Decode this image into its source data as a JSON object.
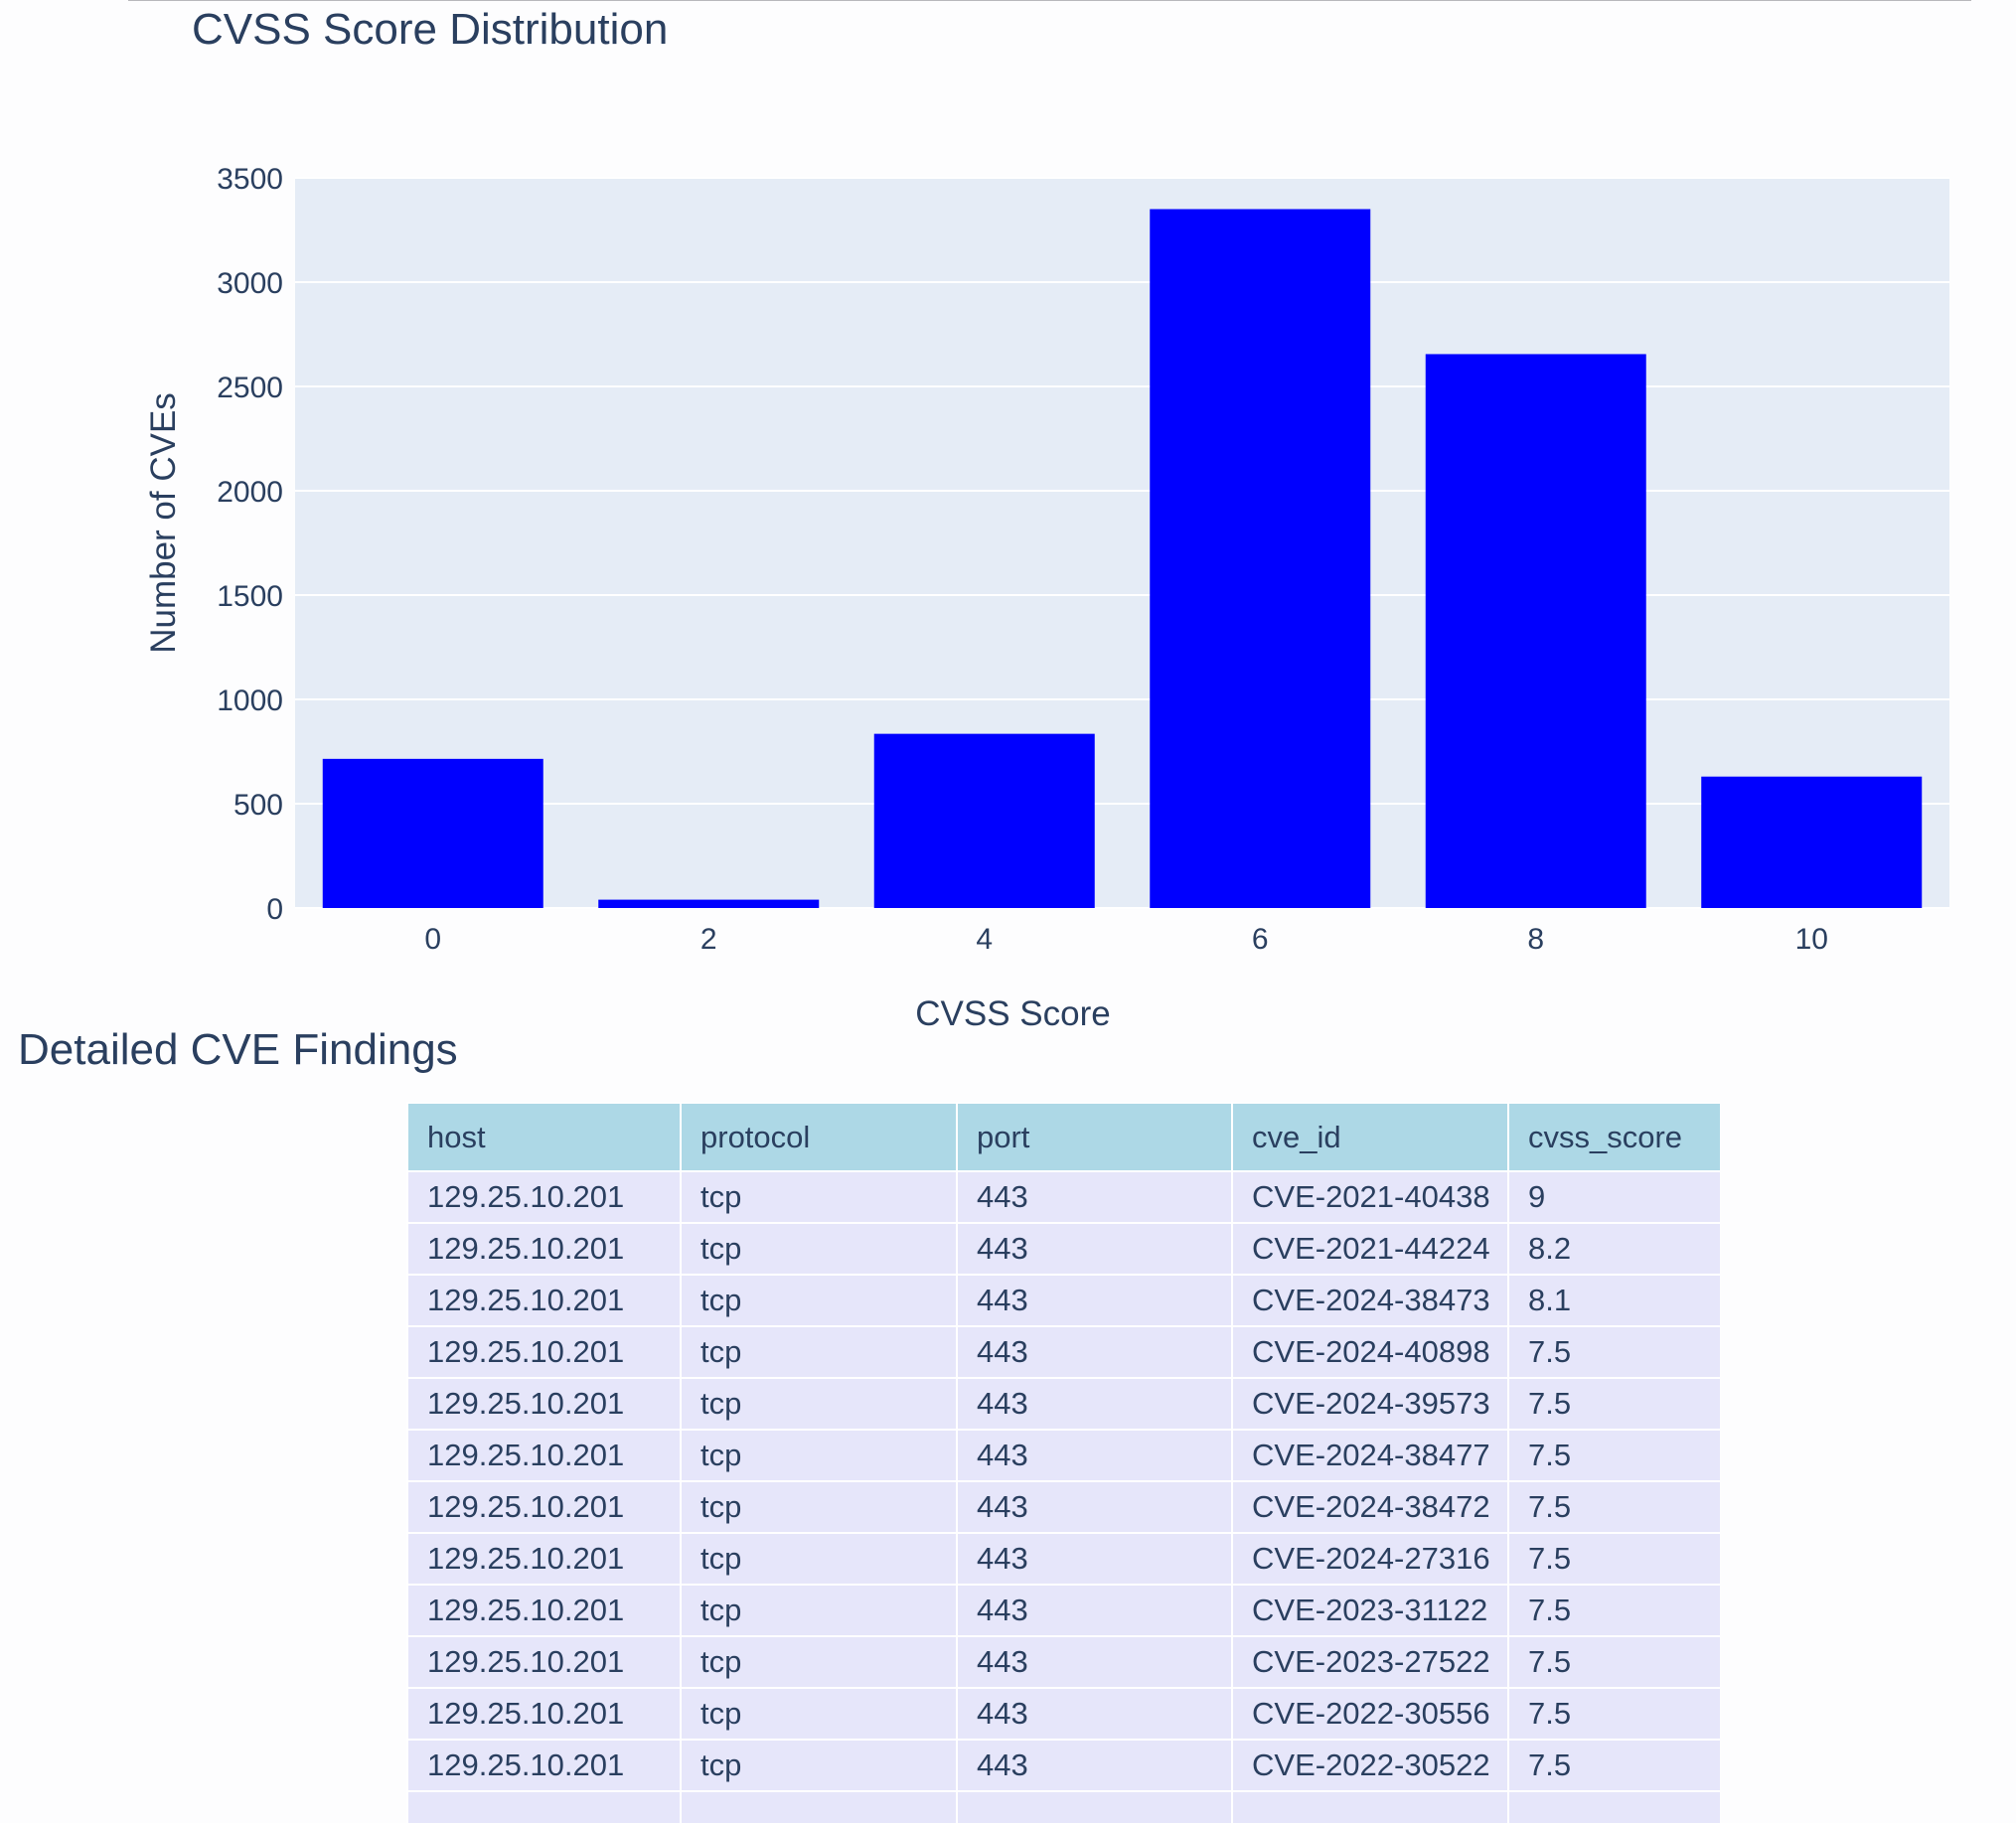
{
  "chart_data": {
    "type": "bar",
    "title": "CVSS Score Distribution",
    "xlabel": "CVSS Score",
    "ylabel": "Number of CVEs",
    "categories": [
      "0",
      "2",
      "4",
      "6",
      "8",
      "10"
    ],
    "x": [
      0,
      2,
      4,
      6,
      8,
      10
    ],
    "values": [
      715,
      40,
      835,
      3350,
      2655,
      630
    ],
    "ylim": [
      0,
      3500
    ],
    "xlim": [
      -1,
      11
    ],
    "yticks": [
      0,
      500,
      1000,
      1500,
      2000,
      2500,
      3000,
      3500
    ],
    "xticks": [
      0,
      2,
      4,
      6,
      8,
      10
    ],
    "bar_width": 1.6,
    "grid": true,
    "legend": "none"
  },
  "colors": {
    "bar": "#0000ff",
    "plot_bg": "#e5ecf6",
    "grid": "#ffffff",
    "text": "#2a3f5f",
    "table_header_bg": "#add8e6",
    "table_cell_bg": "#e6e6fa"
  },
  "section": {
    "title": "Detailed CVE Findings"
  },
  "table": {
    "headers": [
      "host",
      "protocol",
      "port",
      "cve_id",
      "cvss_score"
    ],
    "rows": [
      [
        "129.25.10.201",
        "tcp",
        "443",
        "CVE-2021-40438",
        "9"
      ],
      [
        "129.25.10.201",
        "tcp",
        "443",
        "CVE-2021-44224",
        "8.2"
      ],
      [
        "129.25.10.201",
        "tcp",
        "443",
        "CVE-2024-38473",
        "8.1"
      ],
      [
        "129.25.10.201",
        "tcp",
        "443",
        "CVE-2024-40898",
        "7.5"
      ],
      [
        "129.25.10.201",
        "tcp",
        "443",
        "CVE-2024-39573",
        "7.5"
      ],
      [
        "129.25.10.201",
        "tcp",
        "443",
        "CVE-2024-38477",
        "7.5"
      ],
      [
        "129.25.10.201",
        "tcp",
        "443",
        "CVE-2024-38472",
        "7.5"
      ],
      [
        "129.25.10.201",
        "tcp",
        "443",
        "CVE-2024-27316",
        "7.5"
      ],
      [
        "129.25.10.201",
        "tcp",
        "443",
        "CVE-2023-31122",
        "7.5"
      ],
      [
        "129.25.10.201",
        "tcp",
        "443",
        "CVE-2023-27522",
        "7.5"
      ],
      [
        "129.25.10.201",
        "tcp",
        "443",
        "CVE-2022-30556",
        "7.5"
      ],
      [
        "129.25.10.201",
        "tcp",
        "443",
        "CVE-2022-30522",
        "7.5"
      ],
      [
        "",
        "",
        "",
        "",
        ""
      ]
    ]
  }
}
